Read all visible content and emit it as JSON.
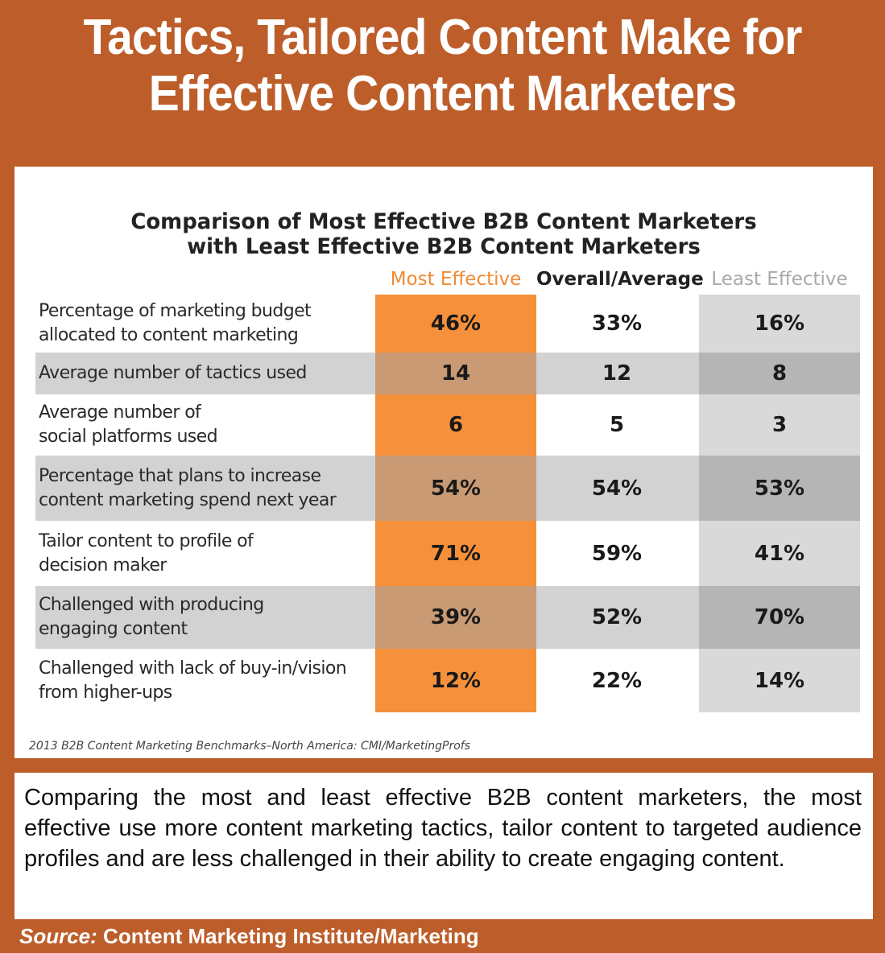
{
  "headline": {
    "line1": "Tactics, Tailored Content Make for",
    "line2": "Effective Content Marketers"
  },
  "chart_data": {
    "type": "table",
    "title": {
      "line1": "Comparison of Most Effective B2B Content Marketers",
      "line2": "with Least Effective B2B Content Marketers"
    },
    "columns": [
      "Most Effective",
      "Overall/Average",
      "Least Effective"
    ],
    "rows": [
      {
        "label": [
          "Percentage of marketing budget",
          "allocated to content marketing"
        ],
        "values": [
          "46%",
          "33%",
          "16%"
        ]
      },
      {
        "label": [
          "Average number of tactics used"
        ],
        "values": [
          "14",
          "12",
          "8"
        ]
      },
      {
        "label": [
          "Average number of",
          "social platforms used"
        ],
        "values": [
          "6",
          "5",
          "3"
        ]
      },
      {
        "label": [
          "Percentage that plans to increase",
          "content marketing spend next year"
        ],
        "values": [
          "54%",
          "54%",
          "53%"
        ]
      },
      {
        "label": [
          "Tailor content to profile of",
          "decision maker"
        ],
        "values": [
          "71%",
          "59%",
          "41%"
        ]
      },
      {
        "label": [
          "Challenged with producing",
          "engaging content"
        ],
        "values": [
          "39%",
          "52%",
          "70%"
        ]
      },
      {
        "label": [
          "Challenged with lack of buy-in/vision",
          "from higher-ups"
        ],
        "values": [
          "12%",
          "22%",
          "14%"
        ]
      }
    ],
    "source": "2013 B2B Content Marketing Benchmarks–North America: CMI/MarketingProfs",
    "colors": {
      "most_effective": "#f6903a",
      "most_effective_shaded": "#c99a73",
      "least_effective": "#d9d9d9",
      "least_effective_shaded": "#b5b5b5",
      "row_shade": "#d2d2d2",
      "most_header": "#ef8a35",
      "least_header": "#a9a9a9"
    }
  },
  "caption": "Comparing the most and least effective B2B content marketers, the most effective use more content marketing tactics, tailor content to targeted audience profiles and are less challenged in their ability to create engaging content.",
  "source": {
    "label": "Source:",
    "text": "Content Marketing Institute/Marketing"
  },
  "colors": {
    "frame": "#bd5e2a",
    "headline_text": "#ffffff"
  }
}
